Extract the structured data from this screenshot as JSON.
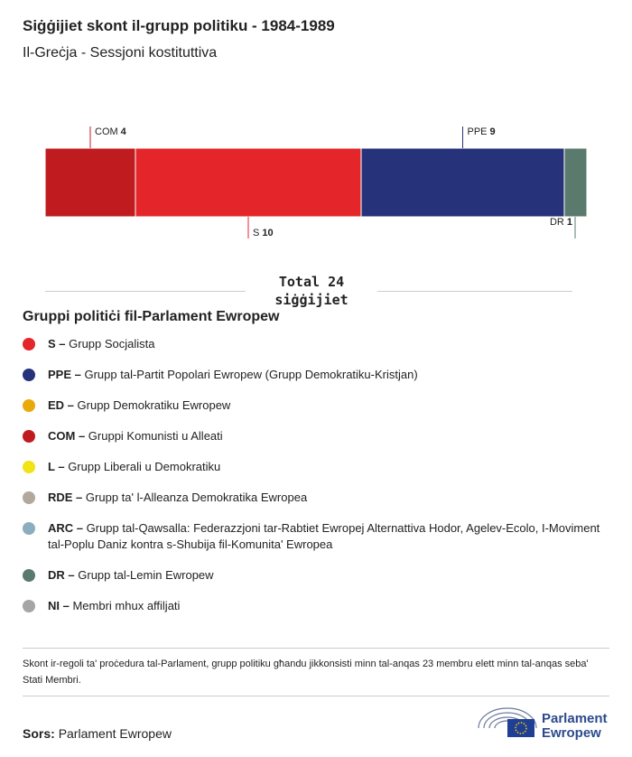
{
  "chart_data": {
    "type": "stacked-bar",
    "title": "Siġġijiet skont il-grupp politiku - 1984-1989",
    "subtitle": "Il-Greċja - Sessjoni kostituttiva",
    "series": [
      {
        "name": "COM",
        "color": "#c01c1f",
        "values": [
          4
        ]
      },
      {
        "name": "S",
        "color": "#e4262a",
        "values": [
          10
        ]
      },
      {
        "name": "PPE",
        "color": "#26327a",
        "values": [
          9
        ]
      },
      {
        "name": "DR",
        "color": "#5a7a6d",
        "values": [
          1
        ]
      }
    ],
    "xlim": [
      0,
      24
    ],
    "total": {
      "label": "Total",
      "value": 24,
      "unit": "siġġijiet"
    }
  },
  "legend": {
    "title": "Gruppi politiċi fil-Parlament Ewropew",
    "items": [
      {
        "abbr": "S –",
        "name": "Grupp Socjalista",
        "color": "#e4262a"
      },
      {
        "abbr": "PPE –",
        "name": "Grupp tal-Partit Popolari Ewropew (Grupp Demokratiku-Kristjan)",
        "color": "#26327a"
      },
      {
        "abbr": "ED –",
        "name": "Grupp Demokratiku Ewropew",
        "color": "#e8a90b"
      },
      {
        "abbr": "COM –",
        "name": "Gruppi Komunisti u Alleati",
        "color": "#c01c1f"
      },
      {
        "abbr": "L –",
        "name": "Grupp Liberali u Demokratiku",
        "color": "#f0e316"
      },
      {
        "abbr": "RDE –",
        "name": "Grupp ta' l-Alleanza Demokratika Ewropea",
        "color": "#b2a99c"
      },
      {
        "abbr": "ARC –",
        "name": "Grupp tal-Qawsalla: Federazzjoni tar-Rabtiet Ewropej Alternattiva Hodor, Agelev-Ecolo, I-Moviment tal-Poplu Daniz kontra s-Shubija fil-Komunita' Ewropea",
        "color": "#8aaebf"
      },
      {
        "abbr": "DR –",
        "name": "Grupp tal-Lemin Ewropew",
        "color": "#5a7a6d"
      },
      {
        "abbr": "NI –",
        "name": "Membri mhux affiljati",
        "color": "#a5a5a5"
      }
    ]
  },
  "footnote": "Skont ir-regoli ta' proċedura tal-Parlament, grupp politiku għandu jikkonsisti minn tal-anqas 23 membru elett minn tal-anqas seba' Stati Membri.",
  "source": {
    "label": "Sors:",
    "text": "Parlament Ewropew"
  },
  "logo": {
    "line1": "Parlament",
    "line2": "Ewropew"
  }
}
